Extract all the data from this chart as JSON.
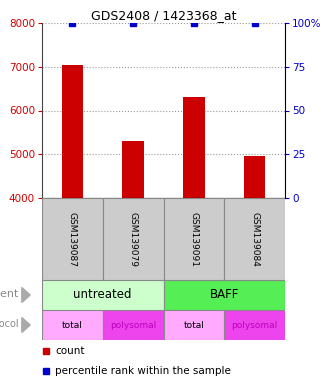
{
  "title": "GDS2408 / 1423368_at",
  "samples": [
    "GSM139087",
    "GSM139079",
    "GSM139091",
    "GSM139084"
  ],
  "bar_values": [
    7050,
    5300,
    6300,
    4950
  ],
  "percentile_values": [
    100,
    100,
    100,
    100
  ],
  "ylim_left": [
    4000,
    8000
  ],
  "ylim_right": [
    0,
    100
  ],
  "yticks_left": [
    4000,
    5000,
    6000,
    7000,
    8000
  ],
  "yticks_right": [
    0,
    25,
    50,
    75,
    100
  ],
  "bar_color": "#cc0000",
  "percentile_color": "#0000cc",
  "bar_width": 0.35,
  "agent_labels": [
    "untreated",
    "BAFF"
  ],
  "agent_colors": [
    "#ccffcc",
    "#55ee55"
  ],
  "protocol_labels": [
    "total",
    "polysomal",
    "total",
    "polysomal"
  ],
  "protocol_colors": [
    "#ffaaff",
    "#ee44ee",
    "#ffaaff",
    "#ee44ee"
  ],
  "protocol_text_colors": [
    "#000000",
    "#bb00bb",
    "#000000",
    "#bb00bb"
  ],
  "label_color_left": "#cc0000",
  "label_color_right": "#0000cc",
  "grid_color": "#999999",
  "sample_box_color": "#cccccc",
  "sample_box_edge": "#888888"
}
